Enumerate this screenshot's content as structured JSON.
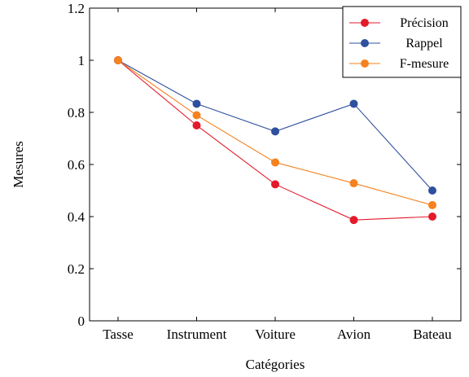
{
  "chart_data": {
    "type": "line",
    "categories": [
      "Tasse",
      "Instrument",
      "Voiture",
      "Avion",
      "Bateau"
    ],
    "series": [
      {
        "name": "Précision",
        "color": "#e31a2a",
        "values": [
          1.0,
          0.75,
          0.524,
          0.387,
          0.4
        ]
      },
      {
        "name": "Rappel",
        "color": "#2f4f9f",
        "values": [
          1.0,
          0.833,
          0.727,
          0.833,
          0.5
        ]
      },
      {
        "name": "F-mesure",
        "color": "#f5821f",
        "values": [
          1.0,
          0.789,
          0.608,
          0.528,
          0.444
        ]
      }
    ],
    "xlabel": "Catégories",
    "ylabel": "Mesures",
    "ylim": [
      0,
      1.2
    ],
    "yticks": [
      "0",
      "0.2",
      "0.4",
      "0.6",
      "0.8",
      "1",
      "1.2"
    ],
    "legend_position": "top-right",
    "grid": false
  }
}
